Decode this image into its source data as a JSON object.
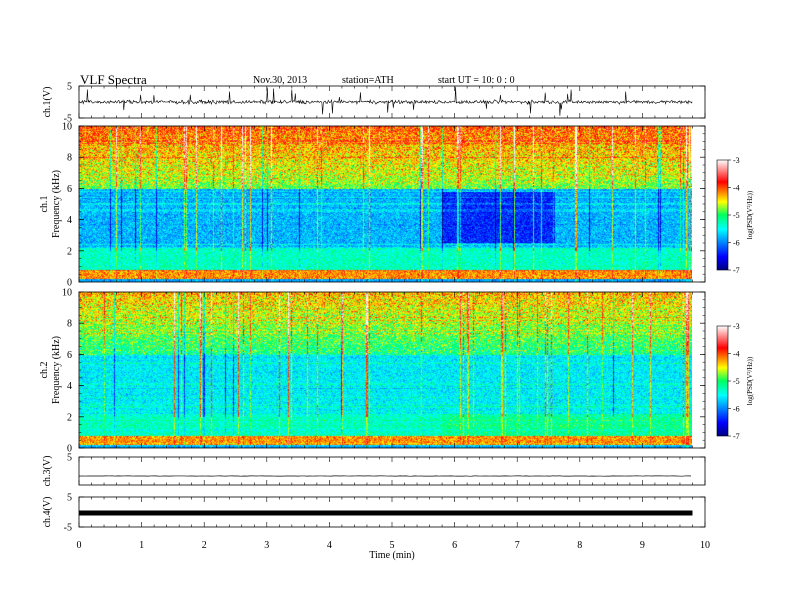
{
  "header": {
    "title": "VLF  Spectra",
    "date": "Nov.30, 2013",
    "station": "station=ATH",
    "start": "start  UT  =   10: 0  : 0"
  },
  "chart_data": [
    {
      "type": "line",
      "panel": "ch1",
      "ylabel": "ch.1(V)",
      "ylim": [
        -5,
        5
      ],
      "yticks": [
        5,
        -5
      ],
      "description_values": {
        "baseline_v": 0.0,
        "amplitude_v": 1.5
      },
      "xlim": [
        0,
        10
      ]
    },
    {
      "type": "heatmap",
      "panel": "spec1",
      "ylabel": "ch.1\nFrequency  (kHz)",
      "ylim": [
        0,
        10
      ],
      "yticks": [
        0,
        2,
        4,
        6,
        8,
        10
      ],
      "xlim": [
        0,
        10
      ],
      "data_end_min": 9.8,
      "colorbar": {
        "label": "log(PSD(V²/Hz))",
        "range": [
          -7,
          -3
        ],
        "ticks": [
          -3,
          -4,
          -5,
          -6,
          -7
        ]
      }
    },
    {
      "type": "heatmap",
      "panel": "spec2",
      "ylabel": "ch.2\nFrequency  (kHz)",
      "ylim": [
        0,
        10
      ],
      "yticks": [
        0,
        2,
        4,
        6,
        8,
        10
      ],
      "xlim": [
        0,
        10
      ],
      "data_end_min": 9.8,
      "colorbar": {
        "label": "log(PSD(V²/Hz))",
        "range": [
          -7,
          -3
        ],
        "ticks": [
          -3,
          -4,
          -5,
          -6,
          -7
        ]
      }
    },
    {
      "type": "line",
      "panel": "ch3",
      "ylabel": "ch.3(V)",
      "ylim": [
        -5,
        5
      ],
      "yticks": [
        5
      ],
      "description_values": {
        "baseline_v": 0.0
      },
      "xlim": [
        0,
        10
      ]
    },
    {
      "type": "line",
      "panel": "ch4",
      "ylabel": "ch.4(V)",
      "ylim": [
        -5,
        5
      ],
      "yticks": [
        5,
        -5
      ],
      "description_values": {
        "baseline_v": 0.0
      },
      "xlim": [
        0,
        10
      ]
    }
  ],
  "xaxis": {
    "label": "Time  (min)",
    "ticks": [
      "0",
      "1",
      "2",
      "3",
      "4",
      "5",
      "6",
      "7",
      "8",
      "9",
      "10"
    ]
  },
  "colors": {
    "cb_stops": [
      "#00007f",
      "#0000ff",
      "#00ffff",
      "#00ff00",
      "#ffff00",
      "#ff0000",
      "#ffffff"
    ],
    "line": "#000000"
  }
}
